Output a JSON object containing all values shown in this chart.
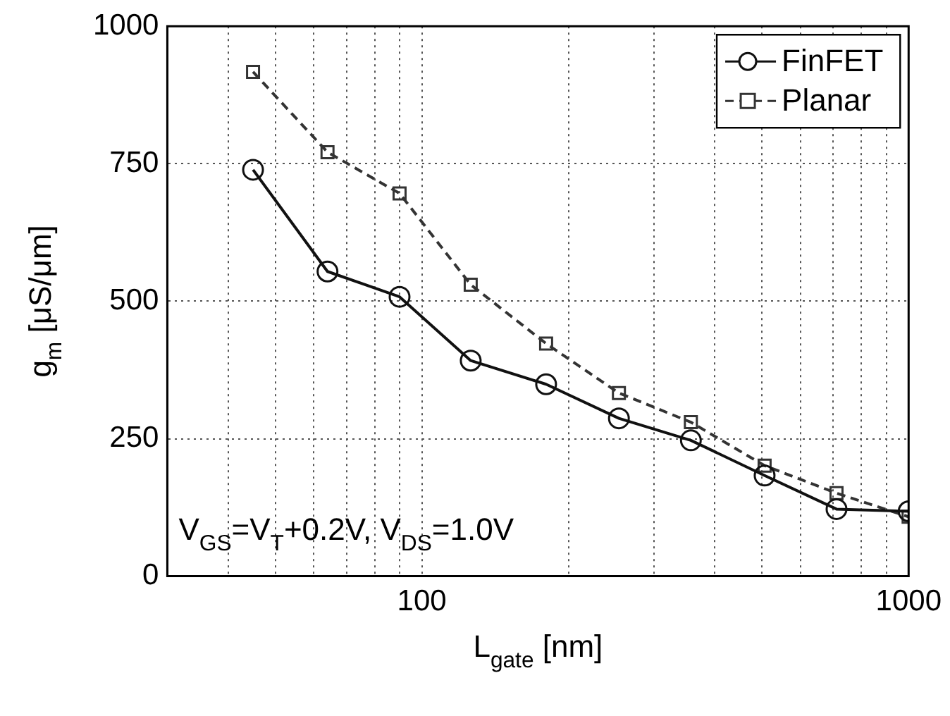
{
  "chart_data": {
    "type": "line",
    "xlabel": "L$_{gate}$ [nm]",
    "ylabel": "g$_{m}$ [μS/μm]",
    "x": [
      45,
      64,
      90,
      126,
      180,
      254,
      357,
      506,
      711,
      1000
    ],
    "series": [
      {
        "name": "FinFET",
        "color": "#111111",
        "marker": "circle",
        "line_style": "solid",
        "values": [
          739,
          554,
          508,
          392,
          349,
          287,
          247,
          183,
          122,
          118
        ]
      },
      {
        "name": "Planar",
        "color": "#333333",
        "marker": "square",
        "line_style": "dashed",
        "values": [
          917,
          771,
          696,
          530,
          423,
          333,
          280,
          201,
          151,
          108
        ]
      }
    ],
    "log": "x",
    "xlim": [
      30,
      1000
    ],
    "xticks": [
      {
        "value": 30,
        "label": null
      },
      {
        "value": 40,
        "label": null
      },
      {
        "value": 50,
        "label": null
      },
      {
        "value": 60,
        "label": null
      },
      {
        "value": 70,
        "label": null
      },
      {
        "value": 80,
        "label": null
      },
      {
        "value": 90,
        "label": null
      },
      100,
      {
        "value": 200,
        "label": null
      },
      {
        "value": 300,
        "label": null
      },
      {
        "value": 400,
        "label": null
      },
      {
        "value": 500,
        "label": null
      },
      {
        "value": 600,
        "label": null
      },
      {
        "value": 700,
        "label": null
      },
      {
        "value": 800,
        "label": null
      },
      {
        "value": 900,
        "label": null
      },
      1000
    ],
    "ylim": [
      0,
      1000
    ],
    "yticks": [
      0,
      250,
      500,
      750,
      1000
    ],
    "grid": true,
    "legend": "top right",
    "annotations": [
      "V$_{GS}$=V$_{T}$+0.2V, V$_{DS}$=1.0V"
    ]
  }
}
